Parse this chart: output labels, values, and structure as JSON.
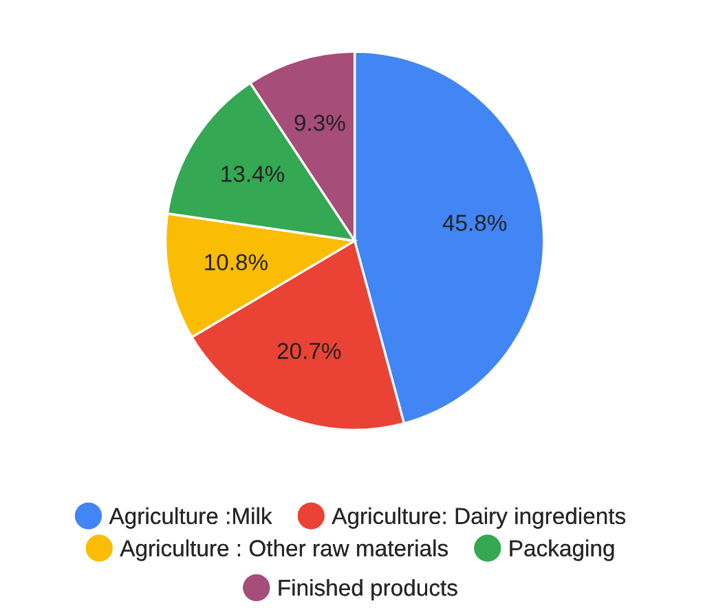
{
  "chart_data": {
    "type": "pie",
    "categories": [
      "Agriculture :Milk",
      "Agriculture: Dairy ingredients",
      "Agriculture : Other raw materials",
      "Packaging",
      "Finished products"
    ],
    "values": [
      45.8,
      20.7,
      10.8,
      13.4,
      9.3
    ],
    "colors": [
      "#4285f4",
      "#ea4335",
      "#fbbc04",
      "#34a853",
      "#a64d79"
    ],
    "value_labels": [
      "45.8%",
      "20.7%",
      "10.8%",
      "13.4%",
      "9.3%"
    ],
    "legend": "bottom"
  }
}
